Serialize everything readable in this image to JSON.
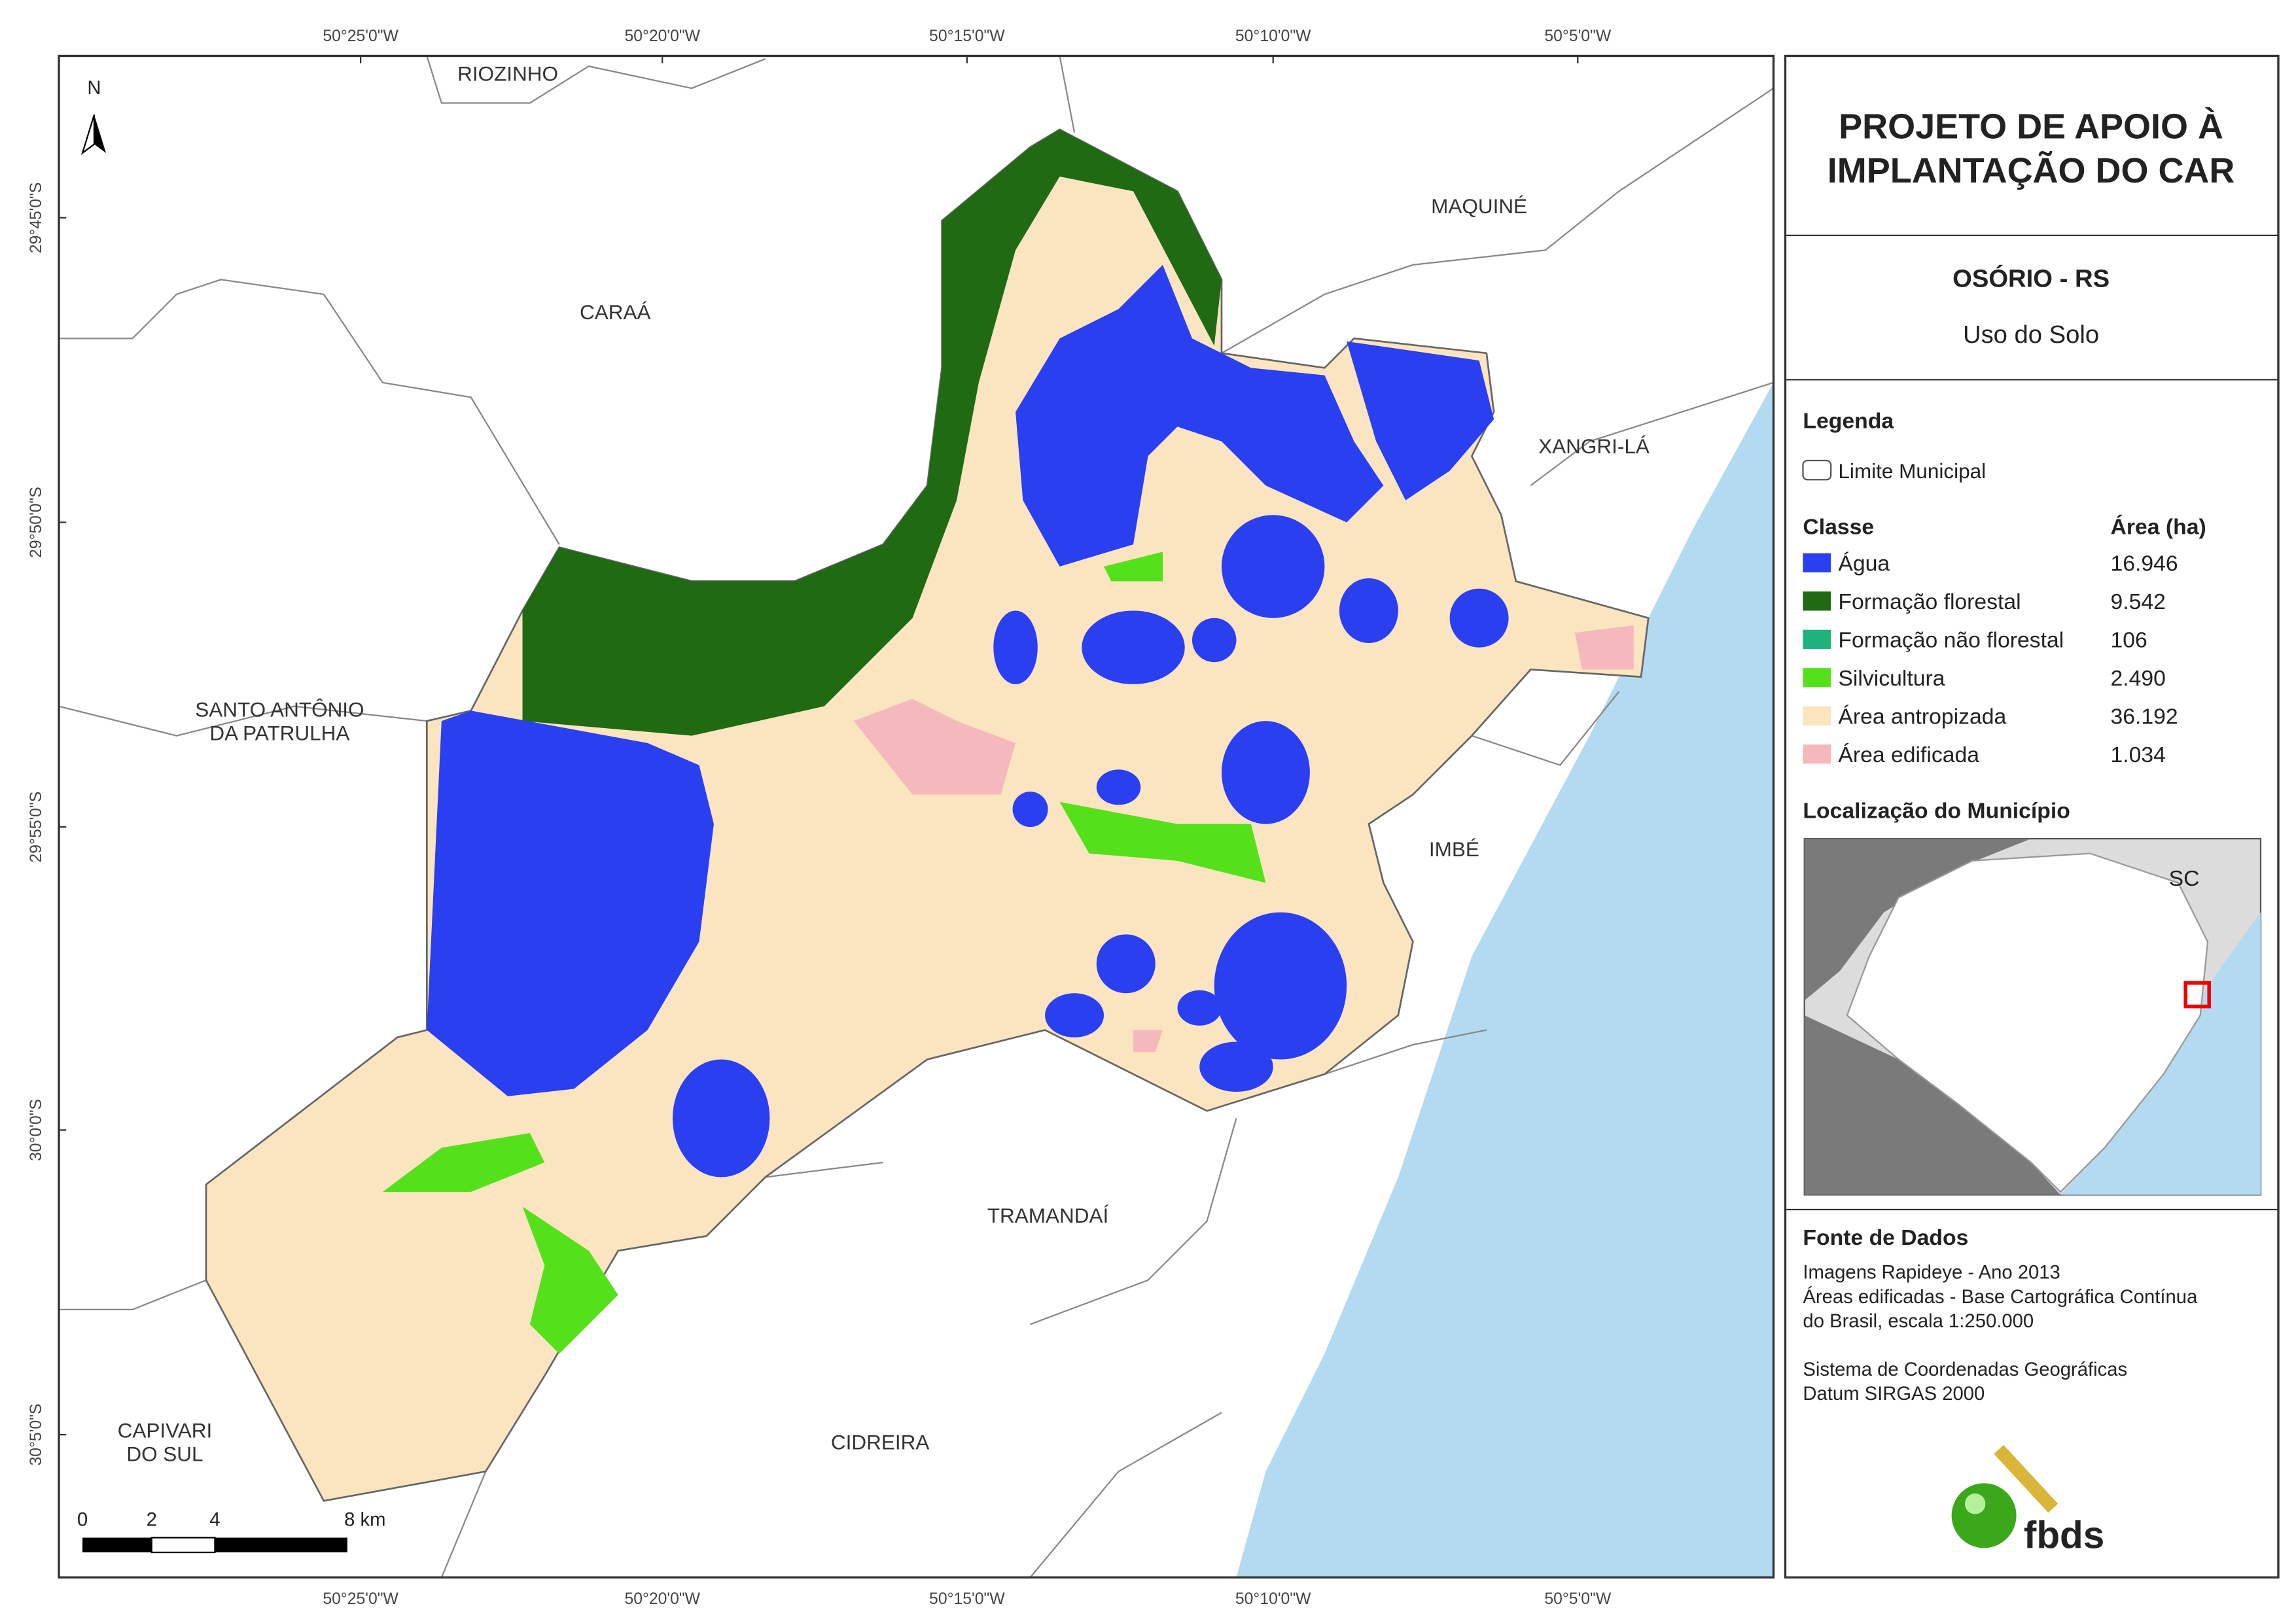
{
  "map": {
    "lon_labels": [
      "50°25'0\"W",
      "50°20'0\"W",
      "50°15'0\"W",
      "50°10'0\"W",
      "50°5'0\"W"
    ],
    "lat_labels": [
      "29°45'0\"S",
      "29°50'0\"S",
      "29°55'0\"S",
      "30°0'0\"S",
      "30°5'0\"S"
    ],
    "north": "N",
    "places": [
      {
        "lines": [
          "RIOZINHO"
        ]
      },
      {
        "lines": [
          "CARAÁ"
        ]
      },
      {
        "lines": [
          "MAQUINÉ"
        ]
      },
      {
        "lines": [
          "XANGRI-LÁ"
        ]
      },
      {
        "lines": [
          "SANTO ANTÔNIO",
          "DA PATRULHA"
        ]
      },
      {
        "lines": [
          "IMBÉ"
        ]
      },
      {
        "lines": [
          "TRAMANDAÍ"
        ]
      },
      {
        "lines": [
          "CAPIVARI",
          "DO SUL"
        ]
      },
      {
        "lines": [
          "CIDREIRA"
        ]
      }
    ],
    "scale_labels": [
      "0",
      "2",
      "4",
      "8 km"
    ]
  },
  "panel": {
    "title": [
      "PROJETO DE APOIO À",
      "IMPLANTAÇÃO DO CAR"
    ],
    "municipality": "OSÓRIO - RS",
    "subtitle": "Uso do Solo",
    "legend": {
      "heading": "Legenda",
      "boundary": "Limite Municipal",
      "class_header": "Classe",
      "area_header": "Área (ha)",
      "classes": [
        {
          "name": "Água",
          "area": "16.946",
          "color": "#2a3ff0"
        },
        {
          "name": "Formação florestal",
          "area": "9.542",
          "color": "#1f6a12"
        },
        {
          "name": "Formação não florestal",
          "area": "106",
          "color": "#1fb27c"
        },
        {
          "name": "Silvicultura",
          "area": "2.490",
          "color": "#55e01c"
        },
        {
          "name": "Área antropizada",
          "area": "36.192",
          "color": "#fbe4c0"
        },
        {
          "name": "Área edificada",
          "area": "1.034",
          "color": "#f5b9bd"
        }
      ]
    },
    "location_heading": "Localização do Município",
    "inset_label": "SC",
    "sources_heading": "Fonte de Dados",
    "sources": [
      "Imagens Rapideye - Ano 2013",
      "Áreas edificadas - Base Cartográfica Contínua",
      "do Brasil, escala 1:250.000",
      "",
      "Sistema de Coordenadas Geográficas",
      "Datum SIRGAS 2000"
    ],
    "logo": "fbds"
  }
}
